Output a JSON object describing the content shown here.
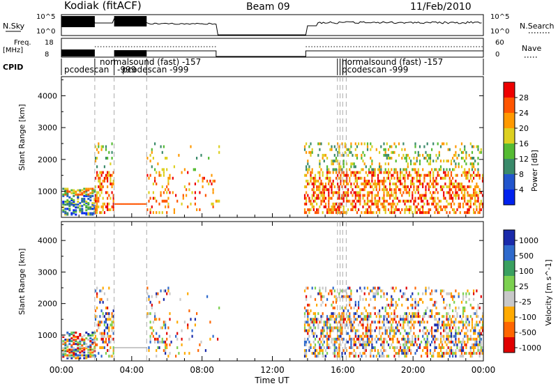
{
  "header": {
    "station": "Kodiak (fitACF)",
    "beam": "Beam 09",
    "date": "11/Feb/2010"
  },
  "top_panels": {
    "nsky_label": "N.Sky",
    "nsearch_label": "N.Search",
    "nsky_ticks": [
      "10^5",
      "10^0"
    ],
    "nsearch_ticks": [
      "10^5",
      "10^0"
    ],
    "freq_label_line1": "Freq.",
    "freq_label_line2": "[MHz]",
    "freq_ticks": [
      "18",
      "8"
    ],
    "nave_label": "Nave",
    "nave_ticks": [
      "60",
      "0"
    ],
    "cpid_label": "CPID",
    "cpid_entries": [
      {
        "text": "pcodescan"
      },
      {
        "text": "normalsound (fast) -157"
      },
      {
        "text": "pcodescan -999"
      },
      {
        "text": "-999"
      },
      {
        "text": "normalsound (fast) -157"
      },
      {
        "text": "pcodescan -999"
      }
    ]
  },
  "chart_data": [
    {
      "type": "heatmap",
      "title": "Power",
      "xlabel": "",
      "ylabel": "Slant Range [km]",
      "xlim": [
        0,
        24
      ],
      "ylim": [
        180,
        4600
      ],
      "x_tick_labels": [
        "00:00",
        "04:00",
        "08:00",
        "12:00",
        "16:00",
        "20:00",
        "00:00"
      ],
      "y_ticks": [
        1000,
        2000,
        3000,
        4000
      ],
      "colorbar": {
        "label": "Power [dB]",
        "ticks": [
          4,
          8,
          12,
          16,
          20,
          24,
          28
        ]
      }
    },
    {
      "type": "heatmap",
      "title": "Velocity",
      "xlabel": "Time UT",
      "ylabel": "Slant Range [km]",
      "xlim": [
        0,
        24
      ],
      "ylim": [
        180,
        4600
      ],
      "x_tick_labels": [
        "00:00",
        "04:00",
        "08:00",
        "12:00",
        "16:00",
        "20:00",
        "00:00"
      ],
      "y_ticks": [
        1000,
        2000,
        3000,
        4000
      ],
      "colorbar": {
        "label": "Velocity [m s^-1]",
        "ticks": [
          "1000",
          "500",
          "100",
          "25",
          "-25",
          "-100",
          "-500",
          "-1000"
        ]
      }
    }
  ],
  "colors": {
    "power_scale": [
      "#0022ee",
      "#2255cc",
      "#3a8a6a",
      "#55bb33",
      "#ddd020",
      "#ff9900",
      "#ff5500",
      "#ee0000"
    ],
    "velocity_scale": [
      "#1a2aaa",
      "#2f6acc",
      "#3aa060",
      "#7cd050",
      "#c8c8c8",
      "#ffaa00",
      "#ff6600",
      "#e00000"
    ]
  }
}
